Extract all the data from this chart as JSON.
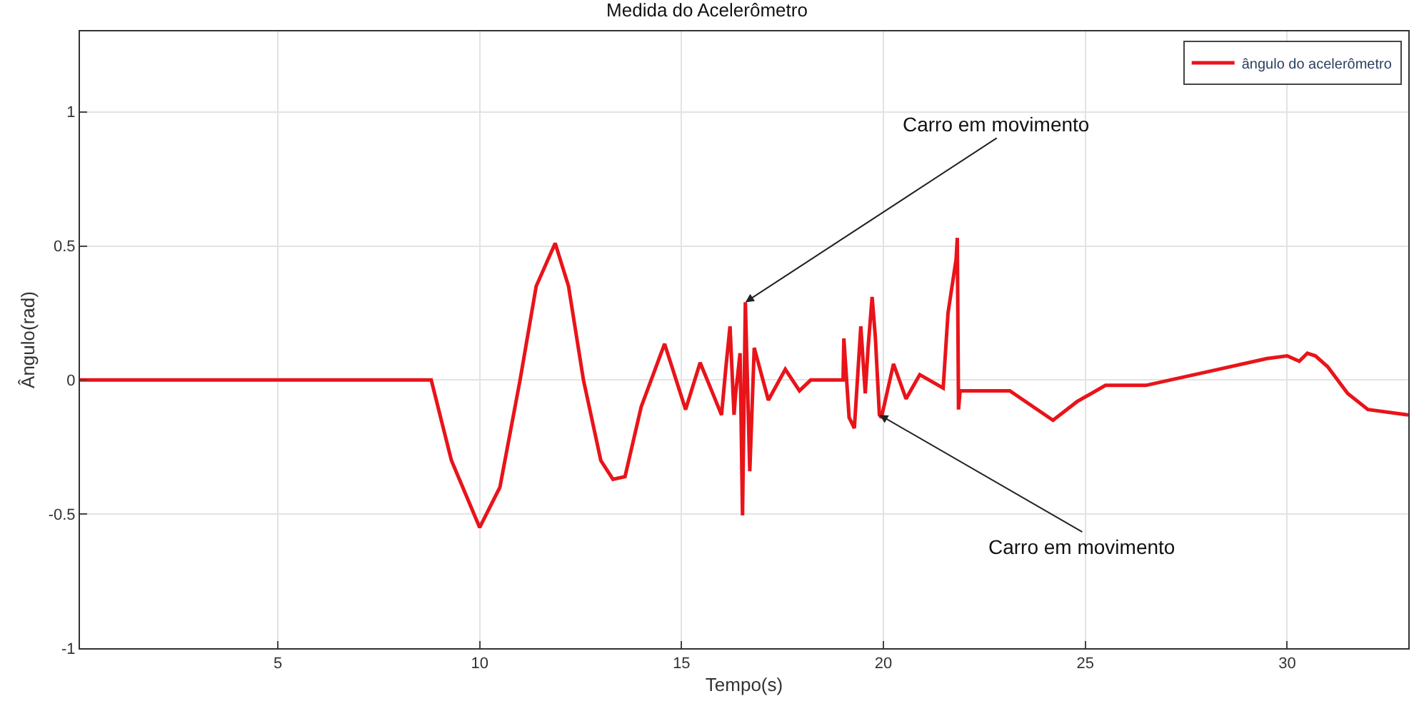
{
  "chart_data": {
    "type": "line",
    "title": "Medida do Acelerômetro",
    "xlabel": "Tempo(s)",
    "ylabel": "Ângulo(rad)",
    "xlim": [
      0.1,
      33
    ],
    "ylim": [
      -1,
      1.3
    ],
    "xticks": [
      5,
      10,
      15,
      20,
      25,
      30
    ],
    "yticks": [
      -1,
      -0.5,
      0,
      0.5,
      1
    ],
    "grid": true,
    "legend": "top right",
    "line_style": "solid",
    "marker": "none",
    "annotations": [
      {
        "text": "Carro em movimento",
        "x": 16.58,
        "y": 0.29
      },
      {
        "text": "Carro em movimento",
        "x": 19.9,
        "y": -0.13
      }
    ],
    "series": [
      {
        "name": "ângulo do acelerômetro",
        "color": "#e8141a",
        "x": [
          0.1,
          2,
          4,
          6,
          8,
          8.8,
          9.3,
          10.0,
          10.5,
          11.0,
          11.4,
          11.87,
          12.2,
          12.57,
          13.0,
          13.3,
          13.6,
          14.0,
          14.58,
          15.1,
          15.46,
          15.8,
          15.99,
          16.1,
          16.2,
          16.3,
          16.34,
          16.45,
          16.51,
          16.58,
          16.69,
          16.8,
          17.15,
          17.57,
          17.92,
          18.2,
          18.8,
          19.0,
          19.02,
          19.15,
          19.28,
          19.44,
          19.55,
          19.62,
          19.72,
          19.8,
          19.9,
          19.95,
          20.25,
          20.56,
          20.9,
          21.48,
          21.6,
          21.8,
          21.83,
          21.86,
          21.9,
          23.13,
          24.2,
          24.8,
          25.5,
          26.5,
          28.0,
          29.5,
          30.0,
          30.3,
          30.5,
          30.7,
          31.0,
          31.5,
          32.0,
          33.0
        ],
        "values": [
          0,
          0,
          0,
          0,
          0,
          0,
          -0.3,
          -0.55,
          -0.4,
          0,
          0.35,
          0.51,
          0.35,
          0,
          -0.3,
          -0.37,
          -0.36,
          -0.1,
          0.135,
          -0.11,
          0.065,
          -0.06,
          -0.13,
          0.05,
          0.2,
          -0.13,
          -0.05,
          0.1,
          -0.505,
          0.29,
          -0.34,
          0.12,
          -0.075,
          0.04,
          -0.04,
          0,
          0,
          0,
          0.155,
          -0.14,
          -0.18,
          0.2,
          -0.05,
          0.12,
          0.31,
          0.16,
          -0.13,
          -0.14,
          0.06,
          -0.07,
          0.02,
          -0.03,
          0.25,
          0.45,
          0.53,
          -0.11,
          -0.04,
          -0.04,
          -0.15,
          -0.08,
          -0.02,
          -0.02,
          0.03,
          0.08,
          0.09,
          0.07,
          0.1,
          0.09,
          0.05,
          -0.05,
          -0.11,
          -0.13
        ]
      }
    ]
  }
}
